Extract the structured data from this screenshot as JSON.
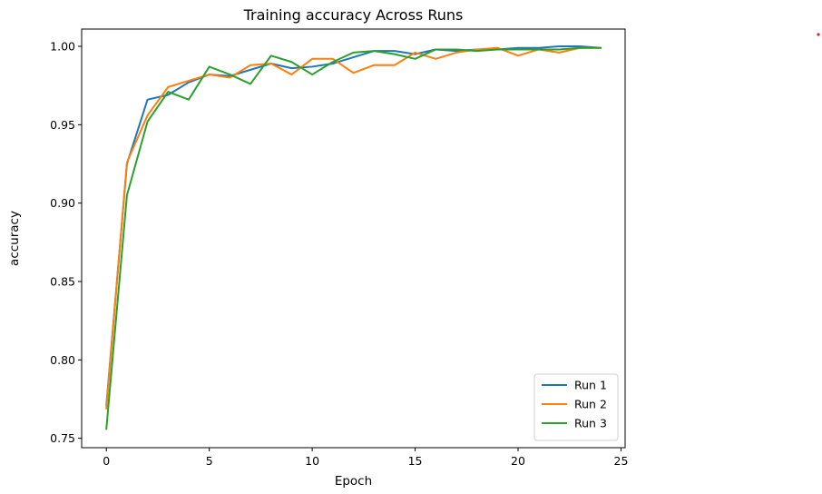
{
  "chart_data": {
    "type": "line",
    "title": "Training accuracy Across Runs",
    "xlabel": "Epoch",
    "ylabel": "accuracy",
    "xlim": [
      -1.2,
      25.2
    ],
    "ylim": [
      0.744,
      1.011
    ],
    "xticks": [
      0,
      5,
      10,
      15,
      20,
      25
    ],
    "yticks": [
      0.75,
      0.8,
      0.85,
      0.9,
      0.95,
      1.0
    ],
    "ytick_labels": [
      "0.75",
      "0.80",
      "0.85",
      "0.90",
      "0.95",
      "1.00"
    ],
    "xtick_labels": [
      "0",
      "5",
      "10",
      "15",
      "20",
      "25"
    ],
    "grid": false,
    "legend_position": "lower-right",
    "x": [
      0,
      1,
      2,
      3,
      4,
      5,
      6,
      7,
      8,
      9,
      10,
      11,
      12,
      13,
      14,
      15,
      16,
      17,
      18,
      19,
      20,
      21,
      22,
      23,
      24
    ],
    "series": [
      {
        "name": "Run 1",
        "color": "#1f77b4",
        "values": [
          0.771,
          0.925,
          0.966,
          0.969,
          0.977,
          0.982,
          0.981,
          0.985,
          0.989,
          0.986,
          0.987,
          0.989,
          0.993,
          0.997,
          0.997,
          0.995,
          0.998,
          0.997,
          0.998,
          0.998,
          0.999,
          0.999,
          1.0,
          1.0,
          0.999
        ]
      },
      {
        "name": "Run 2",
        "color": "#ff7f0e",
        "values": [
          0.769,
          0.926,
          0.956,
          0.974,
          0.978,
          0.982,
          0.98,
          0.988,
          0.989,
          0.982,
          0.992,
          0.992,
          0.983,
          0.988,
          0.988,
          0.996,
          0.992,
          0.996,
          0.998,
          0.999,
          0.994,
          0.998,
          0.996,
          0.999,
          0.999
        ]
      },
      {
        "name": "Run 3",
        "color": "#2ca02c",
        "values": [
          0.756,
          0.905,
          0.952,
          0.971,
          0.966,
          0.987,
          0.982,
          0.976,
          0.994,
          0.99,
          0.982,
          0.99,
          0.996,
          0.997,
          0.995,
          0.992,
          0.998,
          0.998,
          0.997,
          0.998,
          0.998,
          0.998,
          0.998,
          0.999,
          0.999
        ]
      }
    ]
  },
  "marker": {
    "color": "#d62728"
  }
}
